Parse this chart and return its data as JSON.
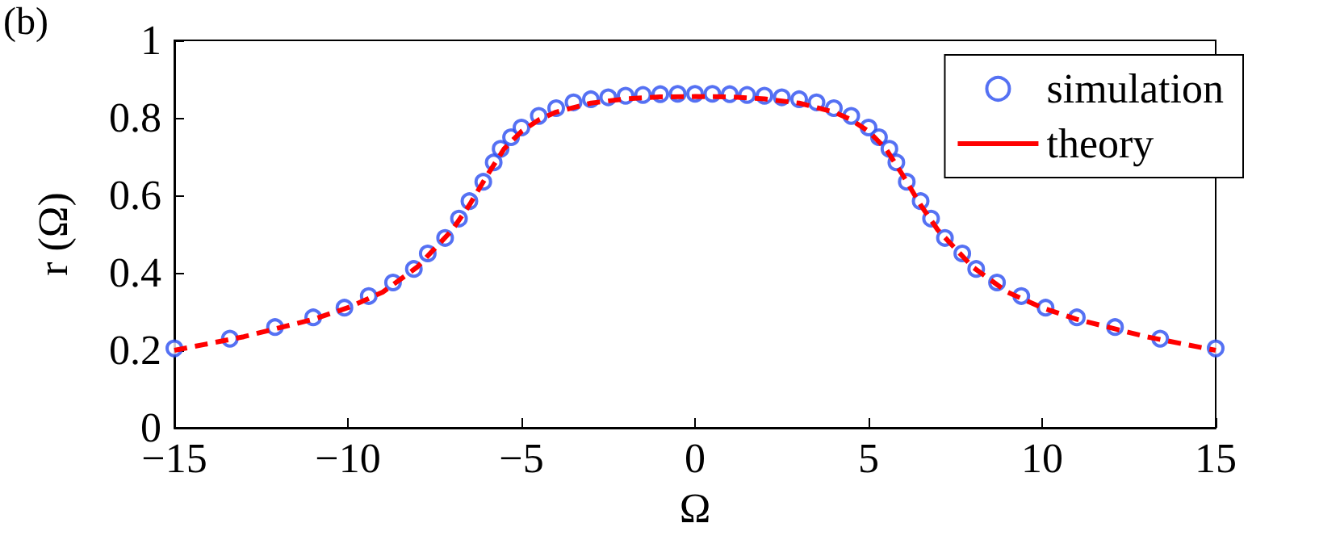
{
  "chart_data": {
    "type": "scatter",
    "xlabel": "Ω",
    "ylabel": "r (Ω)",
    "annotations": [
      "(b)"
    ],
    "xlim": [
      -15,
      15
    ],
    "xticks": [
      -15,
      -10,
      -5,
      0,
      5,
      10,
      15
    ],
    "ylim": [
      0,
      1
    ],
    "yticks": [
      0,
      0.2,
      0.4,
      0.6,
      0.8,
      1
    ],
    "grid": false,
    "legend": "top right",
    "series": [
      {
        "name": "simulation",
        "marker": "circle",
        "color": "#2b4df0",
        "x": [
          -15,
          -13.4,
          -12.1,
          -11,
          -10.1,
          -9.4,
          -8.7,
          -8.1,
          -7.7,
          -7.2,
          -6.8,
          -6.5,
          -6.1,
          -5.8,
          -5.6,
          -5.3,
          -5,
          -4.5,
          -4,
          -3.5,
          -3,
          -2.5,
          -2,
          -1.5,
          -1,
          -0.5,
          0,
          0.5,
          1,
          1.5,
          2,
          2.5,
          3,
          3.5,
          4,
          4.5,
          5,
          5.3,
          5.6,
          5.8,
          6.1,
          6.5,
          6.8,
          7.2,
          7.7,
          8.1,
          8.7,
          9.4,
          10.1,
          11,
          12.1,
          13.4,
          15
        ],
        "values": [
          0.205,
          0.23,
          0.26,
          0.285,
          0.31,
          0.34,
          0.375,
          0.41,
          0.45,
          0.49,
          0.54,
          0.585,
          0.635,
          0.685,
          0.72,
          0.75,
          0.775,
          0.805,
          0.825,
          0.84,
          0.848,
          0.853,
          0.857,
          0.859,
          0.861,
          0.862,
          0.862,
          0.862,
          0.861,
          0.859,
          0.857,
          0.853,
          0.848,
          0.84,
          0.825,
          0.805,
          0.775,
          0.75,
          0.72,
          0.685,
          0.635,
          0.585,
          0.54,
          0.49,
          0.45,
          0.41,
          0.375,
          0.34,
          0.31,
          0.285,
          0.26,
          0.23,
          0.205
        ]
      },
      {
        "name": "theory",
        "type": "line",
        "marker": "none",
        "line_style": "dashed",
        "color": "#ff0000",
        "x": [
          -15,
          -13,
          -11,
          -10,
          -9,
          -8,
          -7,
          -6.5,
          -6,
          -5.5,
          -5,
          -4.5,
          -4,
          -3,
          -2,
          -1,
          0,
          1,
          2,
          3,
          4,
          4.5,
          5,
          5.5,
          6,
          6.5,
          7,
          8,
          9,
          10,
          11,
          13,
          15
        ],
        "values": [
          0.2,
          0.235,
          0.28,
          0.31,
          0.35,
          0.415,
          0.51,
          0.575,
          0.65,
          0.72,
          0.765,
          0.795,
          0.815,
          0.838,
          0.849,
          0.854,
          0.855,
          0.854,
          0.849,
          0.838,
          0.815,
          0.795,
          0.765,
          0.72,
          0.65,
          0.575,
          0.51,
          0.415,
          0.35,
          0.31,
          0.28,
          0.235,
          0.2
        ]
      }
    ]
  }
}
